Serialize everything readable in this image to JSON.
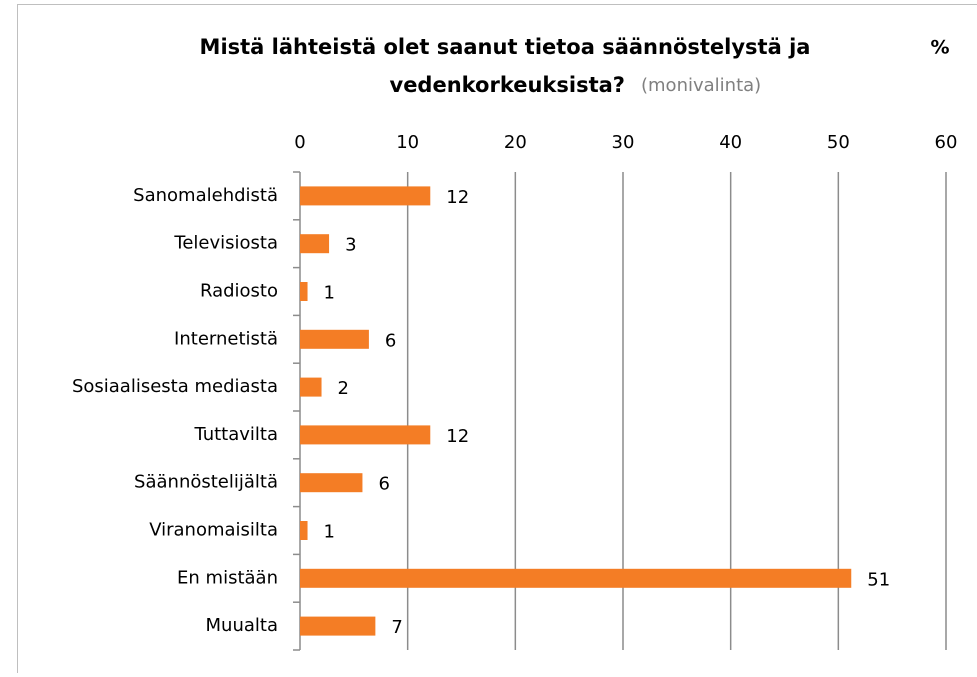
{
  "chart_data": {
    "type": "hbar",
    "title": [
      "Mistä lähteistä olet saanut tietoa säännöstelystä ja",
      "vedenkorkeuksista?"
    ],
    "subtitle": "(monivalinta)",
    "unit_label": "%",
    "categories": [
      "Sanomalehdistä",
      "Televisiosta",
      "Radiosto",
      "Internetistä",
      "Sosiaalisesta mediasta",
      "Tuttavilta",
      "Säännöstelijältä",
      "Viranomaisilta",
      "En mistään",
      "Muualta"
    ],
    "values": [
      12.1,
      2.7,
      0.7,
      6.4,
      2.0,
      12.1,
      5.8,
      0.7,
      51.2,
      7.0
    ],
    "value_labels": [
      "12",
      "3",
      "1",
      "6",
      "2",
      "12",
      "6",
      "1",
      "51",
      "7"
    ],
    "color": "#f47d25",
    "xlim": [
      0,
      60
    ],
    "xticks": [
      0,
      10,
      20,
      30,
      40,
      50,
      60
    ],
    "grid": true
  }
}
